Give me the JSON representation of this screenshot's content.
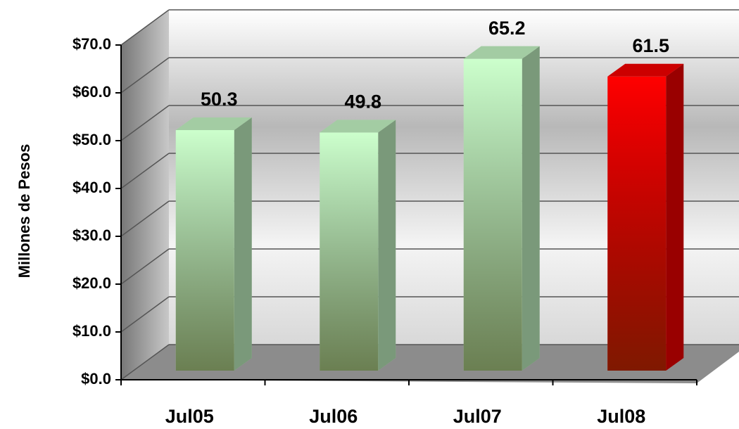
{
  "chart_data": {
    "type": "bar3d",
    "y_axis_label": "Millones de Pesos",
    "categories": [
      "Jul05",
      "Jul06",
      "Jul07",
      "Jul08"
    ],
    "values": [
      50.3,
      49.8,
      65.2,
      61.5
    ],
    "colors": [
      "#ccffcc",
      "#ccffcc",
      "#ccffcc",
      "#ff0000"
    ],
    "ylim": [
      0,
      70
    ],
    "yticks": [
      {
        "value": 0,
        "label": "$0.0"
      },
      {
        "value": 10,
        "label": "$10.0"
      },
      {
        "value": 20,
        "label": "$20.0"
      },
      {
        "value": 30,
        "label": "$30.0"
      },
      {
        "value": 40,
        "label": "$40.0"
      },
      {
        "value": 50,
        "label": "$50.0"
      },
      {
        "value": 60,
        "label": "$60.0"
      },
      {
        "value": 70,
        "label": "$70.0"
      }
    ],
    "grid": true
  }
}
